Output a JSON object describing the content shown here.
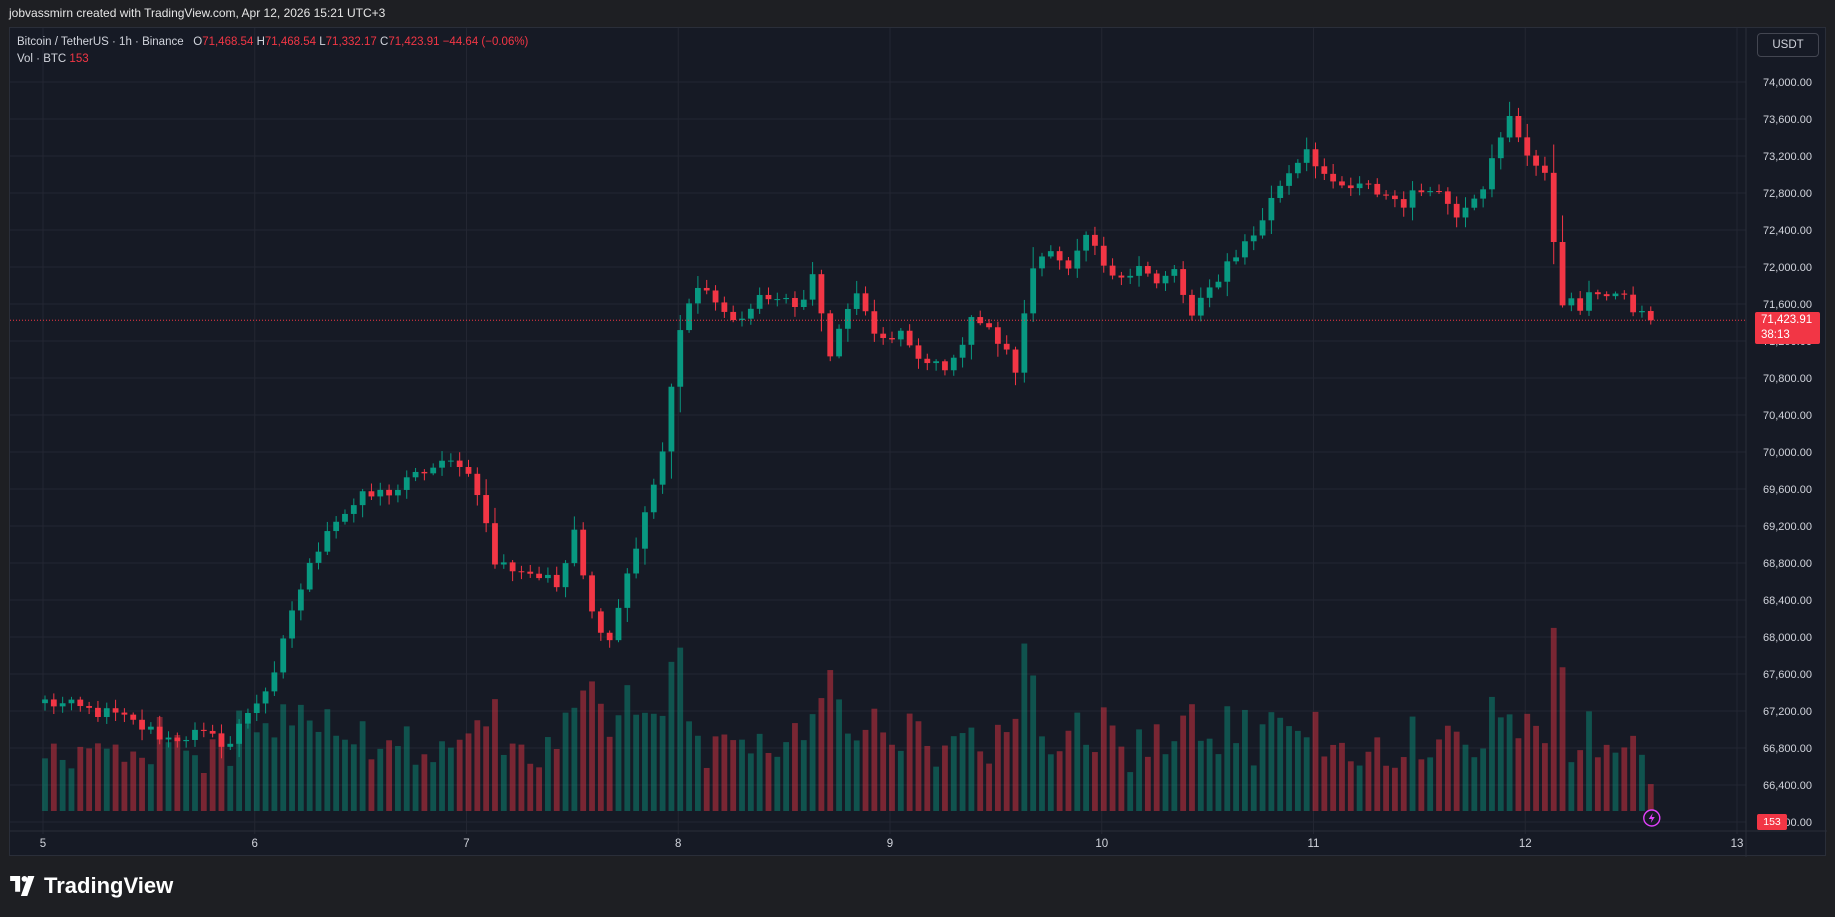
{
  "header": {
    "attribution": "jobvassmirn created with TradingView.com, Apr 12, 2026 15:21 UTC+3"
  },
  "legend": {
    "symbol": "Bitcoin / TetherUS · 1h · Binance",
    "o_label": "O",
    "o_value": "71,468.54",
    "h_label": "H",
    "h_value": "71,468.54",
    "l_label": "L",
    "l_value": "71,332.17",
    "c_label": "C",
    "c_value": "71,423.91",
    "change": "−44.64 (−0.06%)",
    "vol_label": "Vol · BTC",
    "vol_value": "153"
  },
  "axis": {
    "currency": "USDT"
  },
  "last_price": {
    "value": "71,423.91",
    "countdown": "38:13"
  },
  "last_volume": "153",
  "brand": {
    "name": "TradingView"
  },
  "colors": {
    "up": "#089981",
    "down": "#f23645",
    "background": "#161a25",
    "grid": "#232632",
    "text": "#d1d4dc"
  },
  "chart_data": {
    "type": "candlestick",
    "timeframe": "1h",
    "y_axis": {
      "range": [
        65960,
        74200
      ],
      "ticks": [
        "74,000.00",
        "73,600.00",
        "73,200.00",
        "72,800.00",
        "72,400.00",
        "72,000.00",
        "71,600.00",
        "71,200.00",
        "70,800.00",
        "70,400.00",
        "70,000.00",
        "69,600.00",
        "69,200.00",
        "68,800.00",
        "68,400.00",
        "68,000.00",
        "67,600.00",
        "67,200.00",
        "66,800.00",
        "66,400.00",
        "66,000.00"
      ]
    },
    "x_axis": {
      "ticks": [
        "5",
        "6",
        "7",
        "8",
        "9",
        "10",
        "11",
        "12",
        "13"
      ]
    },
    "last_price": 71423.91,
    "waypoints": [
      {
        "h": 0,
        "p": 67300
      },
      {
        "h": 8,
        "p": 67150
      },
      {
        "h": 14,
        "p": 66900
      },
      {
        "h": 17,
        "p": 66950
      },
      {
        "h": 21,
        "p": 66850
      },
      {
        "h": 23,
        "p": 67200
      },
      {
        "h": 26,
        "p": 67550
      },
      {
        "h": 28,
        "p": 68300
      },
      {
        "h": 32,
        "p": 69200
      },
      {
        "h": 36,
        "p": 69500
      },
      {
        "h": 40,
        "p": 69600
      },
      {
        "h": 43,
        "p": 69800
      },
      {
        "h": 47,
        "p": 69900
      },
      {
        "h": 49,
        "p": 69600
      },
      {
        "h": 51,
        "p": 68800
      },
      {
        "h": 55,
        "p": 68700
      },
      {
        "h": 58,
        "p": 68550
      },
      {
        "h": 60,
        "p": 69200
      },
      {
        "h": 62,
        "p": 68250
      },
      {
        "h": 64,
        "p": 68000
      },
      {
        "h": 66,
        "p": 68700
      },
      {
        "h": 68,
        "p": 69300
      },
      {
        "h": 70,
        "p": 70000
      },
      {
        "h": 72,
        "p": 71300
      },
      {
        "h": 74,
        "p": 71850
      },
      {
        "h": 78,
        "p": 71400
      },
      {
        "h": 82,
        "p": 71700
      },
      {
        "h": 85,
        "p": 71550
      },
      {
        "h": 87,
        "p": 71900
      },
      {
        "h": 89,
        "p": 71050
      },
      {
        "h": 92,
        "p": 71750
      },
      {
        "h": 94,
        "p": 71200
      },
      {
        "h": 97,
        "p": 71300
      },
      {
        "h": 99,
        "p": 70950
      },
      {
        "h": 103,
        "p": 70950
      },
      {
        "h": 105,
        "p": 71500
      },
      {
        "h": 108,
        "p": 71200
      },
      {
        "h": 110,
        "p": 70900
      },
      {
        "h": 112,
        "p": 72000
      },
      {
        "h": 114,
        "p": 72250
      },
      {
        "h": 116,
        "p": 71950
      },
      {
        "h": 118,
        "p": 72300
      },
      {
        "h": 121,
        "p": 71850
      },
      {
        "h": 124,
        "p": 72050
      },
      {
        "h": 126,
        "p": 71800
      },
      {
        "h": 128,
        "p": 71950
      },
      {
        "h": 130,
        "p": 71450
      },
      {
        "h": 134,
        "p": 72050
      },
      {
        "h": 137,
        "p": 72350
      },
      {
        "h": 140,
        "p": 72900
      },
      {
        "h": 143,
        "p": 73300
      },
      {
        "h": 146,
        "p": 72850
      },
      {
        "h": 150,
        "p": 72850
      },
      {
        "h": 154,
        "p": 72700
      },
      {
        "h": 157,
        "p": 72900
      },
      {
        "h": 160,
        "p": 72600
      },
      {
        "h": 163,
        "p": 72900
      },
      {
        "h": 166,
        "p": 73600
      },
      {
        "h": 168,
        "p": 73250
      },
      {
        "h": 170,
        "p": 72950
      },
      {
        "h": 172,
        "p": 71650
      },
      {
        "h": 174,
        "p": 71550
      },
      {
        "h": 176,
        "p": 71750
      },
      {
        "h": 178,
        "p": 71700
      },
      {
        "h": 180,
        "p": 71550
      },
      {
        "h": 182,
        "p": 71424
      }
    ],
    "volume": {
      "last": 153,
      "max": 1540
    }
  }
}
